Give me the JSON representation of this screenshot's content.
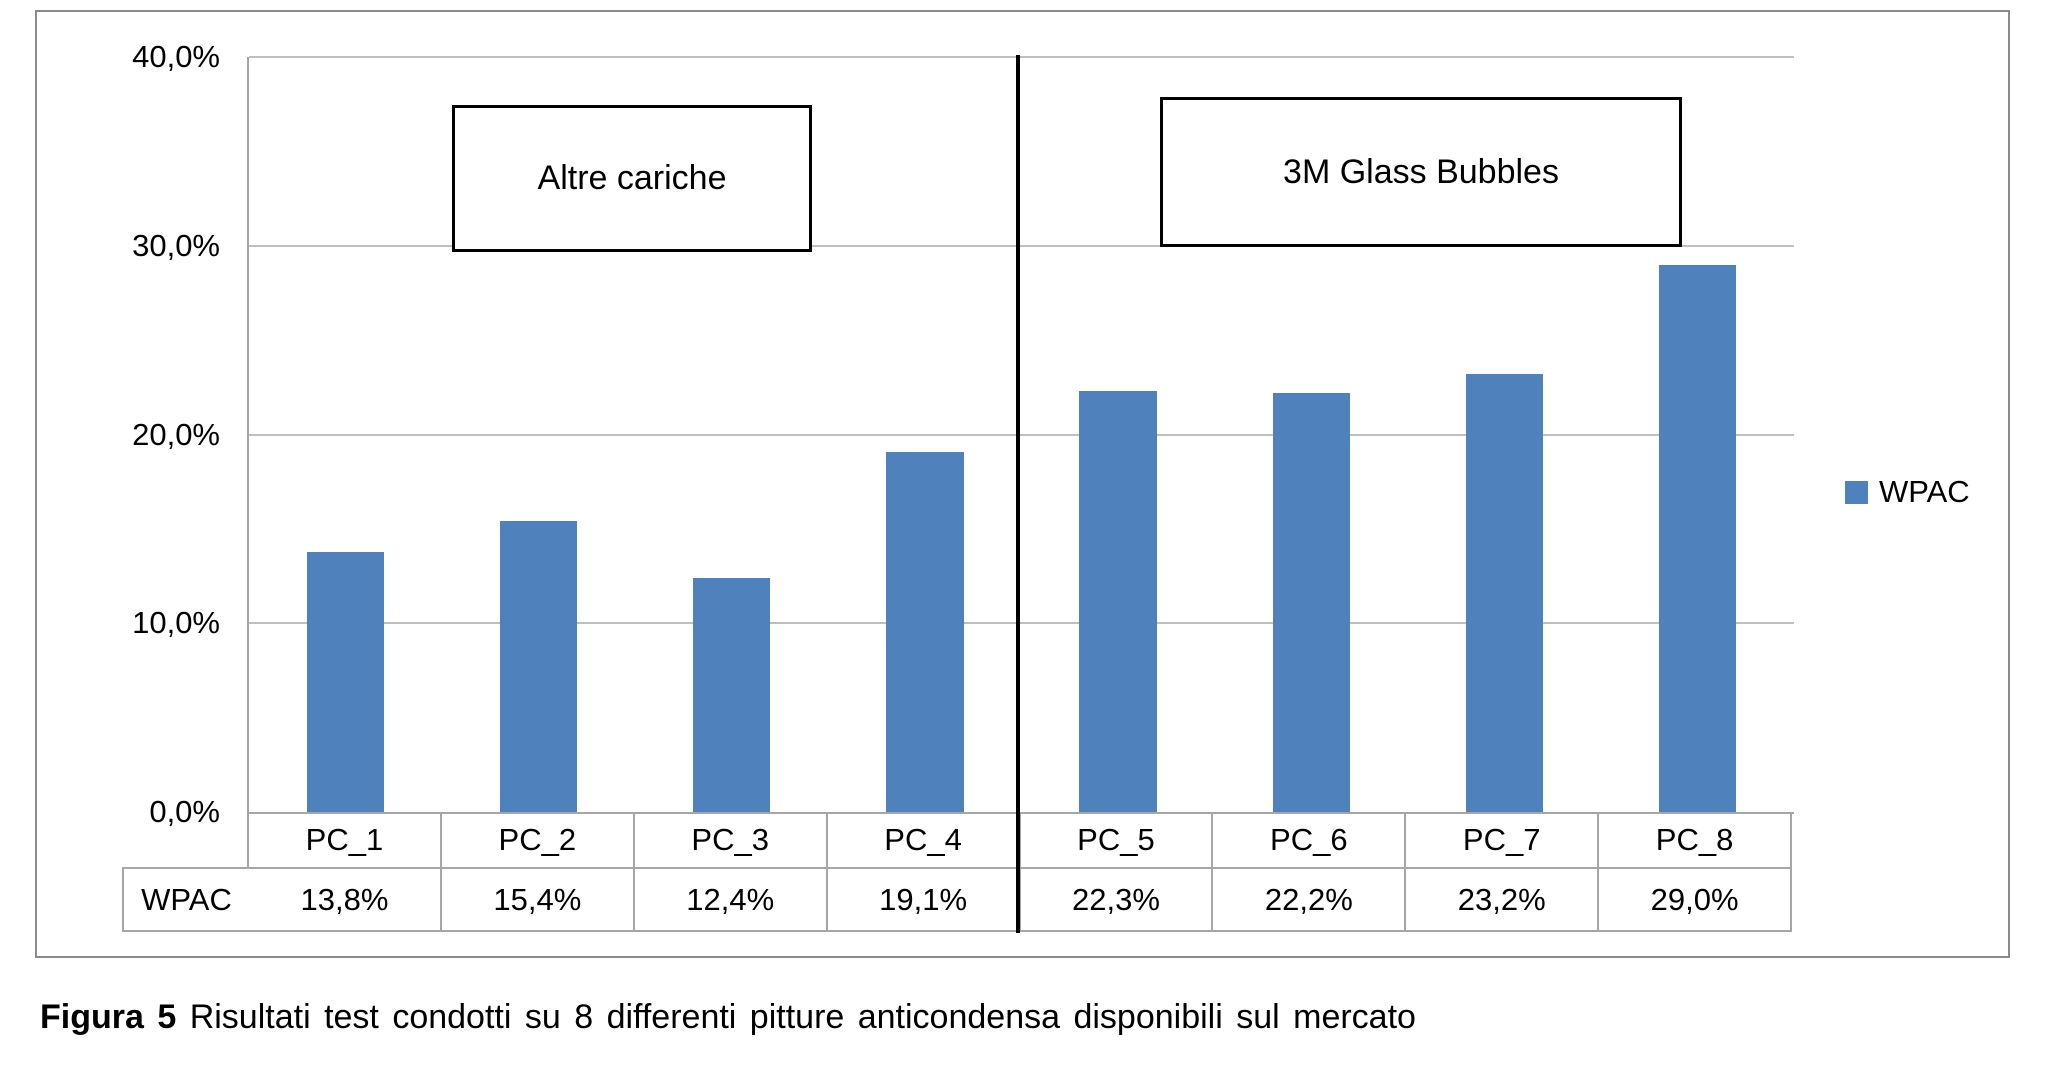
{
  "chart_data": {
    "type": "bar",
    "categories": [
      "PC_1",
      "PC_2",
      "PC_3",
      "PC_4",
      "PC_5",
      "PC_6",
      "PC_7",
      "PC_8"
    ],
    "series": [
      {
        "name": "WPAC",
        "values": [
          13.8,
          15.4,
          12.4,
          19.1,
          22.3,
          22.2,
          23.2,
          29.0
        ]
      }
    ],
    "value_labels": [
      "13,8%",
      "15,4%",
      "12,4%",
      "19,1%",
      "22,3%",
      "22,2%",
      "23,2%",
      "29,0%"
    ],
    "title": "",
    "xlabel": "",
    "ylabel": "",
    "ylim": [
      0,
      40
    ],
    "y_ticks": [
      0,
      10,
      20,
      30,
      40
    ],
    "y_tick_labels": [
      "0,0%",
      "10,0%",
      "20,0%",
      "30,0%",
      "40,0%"
    ],
    "grid": true,
    "bar_color": "#4f81bd",
    "legend": {
      "position": "right",
      "label": "WPAC"
    },
    "table_row_header": "WPAC",
    "annotations": [
      {
        "label": "Altre cariche",
        "group_categories": [
          "PC_1",
          "PC_2",
          "PC_3",
          "PC_4"
        ]
      },
      {
        "label": "3M Glass Bubbles",
        "group_categories": [
          "PC_5",
          "PC_6",
          "PC_7",
          "PC_8"
        ]
      }
    ],
    "group_divider_after_category": "PC_4"
  },
  "caption": {
    "prefix": "Figura 5",
    "text": "Risultati test condotti su 8 differenti pitture anticondensa disponibili sul mercato"
  }
}
